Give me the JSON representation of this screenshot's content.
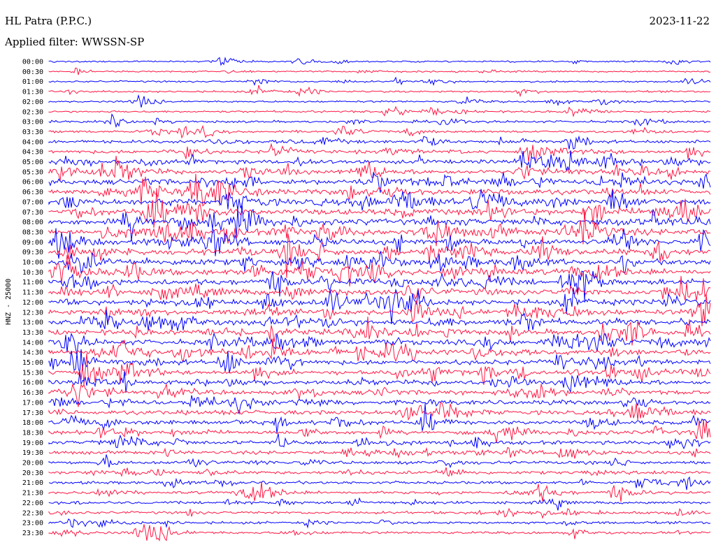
{
  "header": {
    "station": "HL Patra (P.P.C.)",
    "date": "2023-11-22",
    "filter": "Applied filter: WWSSN-SP"
  },
  "chart_data": {
    "type": "line",
    "title": "HL Patra (P.P.C.)",
    "subtitle": "Applied filter: WWSSN-SP",
    "date": "2023-11-22",
    "ylabel": "HNZ - 25000",
    "colors": [
      "#0000ff",
      "#ff1744"
    ],
    "row_labels": [
      "00:00",
      "00:30",
      "01:00",
      "01:30",
      "02:00",
      "02:30",
      "03:00",
      "03:30",
      "04:00",
      "04:30",
      "05:00",
      "05:30",
      "06:00",
      "06:30",
      "07:00",
      "07:30",
      "08:00",
      "08:30",
      "09:00",
      "09:30",
      "10:00",
      "10:30",
      "11:00",
      "11:30",
      "12:00",
      "12:30",
      "13:00",
      "13:30",
      "14:00",
      "14:30",
      "15:00",
      "15:30",
      "16:00",
      "16:30",
      "17:00",
      "17:30",
      "18:00",
      "18:30",
      "19:00",
      "19:30",
      "20:00",
      "20:30",
      "21:00",
      "21:30",
      "22:00",
      "22:30",
      "23:00",
      "23:30"
    ],
    "row_activity": [
      0.12,
      0.1,
      0.12,
      0.15,
      0.15,
      0.18,
      0.22,
      0.25,
      0.35,
      0.45,
      0.5,
      0.6,
      0.7,
      0.75,
      0.8,
      0.8,
      0.82,
      0.85,
      0.8,
      0.78,
      0.75,
      0.8,
      0.82,
      0.8,
      0.78,
      0.75,
      0.75,
      0.72,
      0.7,
      0.68,
      0.65,
      0.62,
      0.6,
      0.58,
      0.55,
      0.55,
      0.52,
      0.5,
      0.45,
      0.42,
      0.38,
      0.35,
      0.32,
      0.3,
      0.28,
      0.28,
      0.26,
      0.25
    ]
  }
}
